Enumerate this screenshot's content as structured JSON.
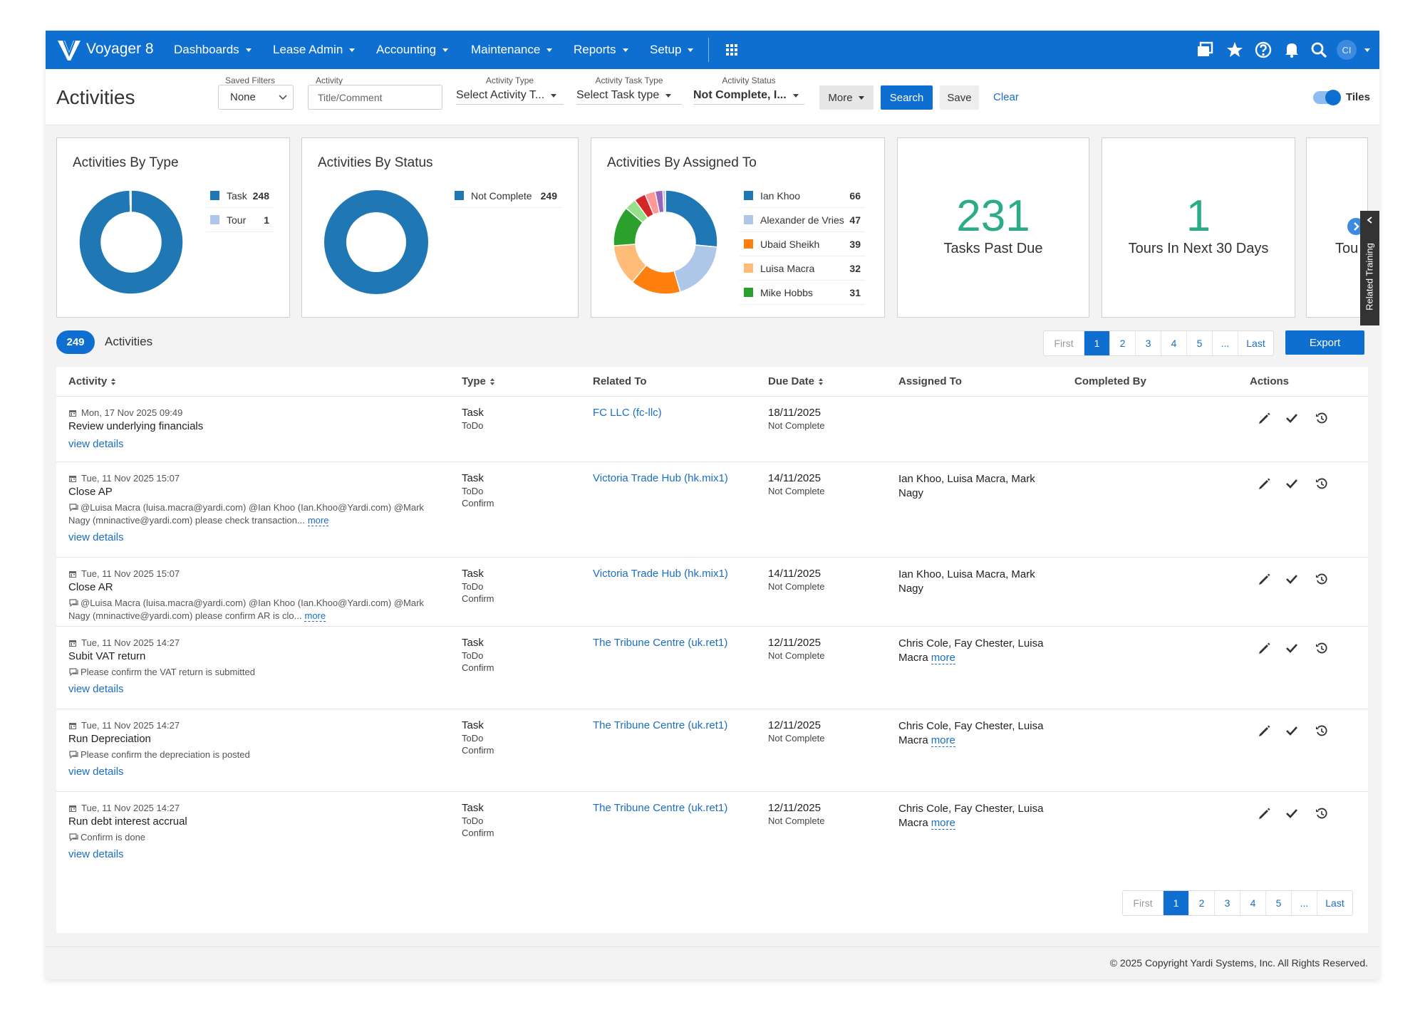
{
  "nav": {
    "brand": "Voyager 8",
    "menus": [
      "Dashboards",
      "Lease Admin",
      "Accounting",
      "Maintenance",
      "Reports",
      "Setup"
    ],
    "user": "CI"
  },
  "toolbar": {
    "title": "Activities",
    "filters": [
      {
        "label": "Saved Filters",
        "value": "None"
      },
      {
        "label": "Activity",
        "placeholder": "Title/Comment"
      },
      {
        "label": "Activity Type",
        "value": "Select Activity T..."
      },
      {
        "label": "Activity Task Type",
        "value": "Select Task type"
      },
      {
        "label": "Activity Status",
        "value": "Not Complete, I..."
      }
    ],
    "more": "More",
    "search": "Search",
    "save": "Save",
    "clear": "Clear",
    "toggle": {
      "label": "Tiles",
      "on": true
    }
  },
  "chart_data": [
    {
      "type": "pie",
      "title": "Activities By Type",
      "categories": [
        "Task",
        "Tour"
      ],
      "values": [
        248,
        1
      ],
      "colors": [
        "#1f77b4",
        "#aec7e8"
      ]
    },
    {
      "type": "pie",
      "title": "Activities By Status",
      "categories": [
        "Not Complete"
      ],
      "values": [
        249
      ],
      "colors": [
        "#1f77b4"
      ]
    },
    {
      "type": "pie",
      "title": "Activities By Assigned To",
      "categories": [
        "Ian Khoo",
        "Alexander de Vries",
        "Ubaid Sheikh",
        "Luisa Macra",
        "Mike Hobbs",
        null,
        null,
        null,
        null,
        null
      ],
      "values": [
        66,
        47,
        39,
        32,
        31,
        9,
        9,
        8,
        6,
        2
      ],
      "colors": [
        "#1f77b4",
        "#aec7e8",
        "#ff7f0e",
        "#ffbb78",
        "#2ca02c",
        "#98df8a",
        "#d62728",
        "#ff9896",
        "#9467bd",
        "#c5b0d5"
      ]
    }
  ],
  "kpis": [
    {
      "value": 231,
      "label": "Tasks Past Due"
    },
    {
      "value": 1,
      "label": "Tours In Next 30 Days"
    },
    {
      "label": "Tou"
    }
  ],
  "related_training": "Related Training",
  "list": {
    "count": 249,
    "title": "Activities",
    "export": "Export",
    "pages": [
      "First",
      "1",
      "2",
      "3",
      "4",
      "5",
      "...",
      "Last"
    ],
    "current": 1
  },
  "table": {
    "headers": [
      {
        "text": "Activity",
        "sort": true
      },
      {
        "text": "Type",
        "sort": true
      },
      {
        "text": "Related To",
        "sort": false
      },
      {
        "text": "Due Date",
        "sort": true
      },
      {
        "text": "Assigned To",
        "sort": false
      },
      {
        "text": "Completed By",
        "sort": false
      },
      {
        "text": "Actions",
        "sort": false
      }
    ],
    "rows": [
      {
        "date": "Mon, 17 Nov 2025 09:49",
        "title": "Review underlying financials",
        "details": "view details",
        "type": "Task",
        "subtypes": [
          "ToDo"
        ],
        "related": "FC LLC (fc-llc)",
        "due": "18/11/2025",
        "status": "Not Complete"
      },
      {
        "date": "Tue, 11 Nov 2025 15:07",
        "title": "Close AP",
        "comment": "@Luisa Macra (luisa.macra@yardi.com) @Ian Khoo (Ian.Khoo@Yardi.com) @Mark Nagy (mninactive@yardi.com) please check transaction...",
        "comment_more": "more",
        "details": "view details",
        "type": "Task",
        "subtypes": [
          "ToDo",
          "Confirm"
        ],
        "related": "Victoria Trade Hub (hk.mix1)",
        "due": "14/11/2025",
        "status": "Not Complete",
        "assigned": "Ian Khoo, Luisa Macra, Mark Nagy"
      },
      {
        "date": "Tue, 11 Nov 2025 15:07",
        "title": "Close AR",
        "comment": "@Luisa Macra (luisa.macra@yardi.com) @Ian Khoo (Ian.Khoo@Yardi.com) @Mark Nagy (mninactive@yardi.com) please confirm AR is clo...",
        "comment_more": "more",
        "type": "Task",
        "subtypes": [
          "ToDo",
          "Confirm"
        ],
        "related": "Victoria Trade Hub (hk.mix1)",
        "due": "14/11/2025",
        "status": "Not Complete",
        "assigned": "Ian Khoo, Luisa Macra, Mark Nagy"
      },
      {
        "date": "Tue, 11 Nov 2025 14:27",
        "title": "Subit VAT return",
        "comment": "Please confirm the VAT return is submitted",
        "details": "view details",
        "type": "Task",
        "subtypes": [
          "ToDo",
          "Confirm"
        ],
        "related": "The Tribune Centre (uk.ret1)",
        "due": "12/11/2025",
        "status": "Not Complete",
        "assigned": "Chris Cole, Fay Chester, Luisa Macra",
        "assigned_more": "more"
      },
      {
        "date": "Tue, 11 Nov 2025 14:27",
        "title": "Run Depreciation",
        "comment": "Please confirm the depreciation is posted",
        "details": "view details",
        "type": "Task",
        "subtypes": [
          "ToDo",
          "Confirm"
        ],
        "related": "The Tribune Centre (uk.ret1)",
        "due": "12/11/2025",
        "status": "Not Complete",
        "assigned": "Chris Cole, Fay Chester, Luisa Macra",
        "assigned_more": "more"
      },
      {
        "date": "Tue, 11 Nov 2025 14:27",
        "title": "Run debt interest accrual",
        "comment": "Confirm is done",
        "details": "view details",
        "type": "Task",
        "subtypes": [
          "ToDo",
          "Confirm"
        ],
        "related": "The Tribune Centre (uk.ret1)",
        "due": "12/11/2025",
        "status": "Not Complete",
        "assigned": "Chris Cole, Fay Chester, Luisa Macra",
        "assigned_more": "more"
      }
    ]
  },
  "footer": "© 2025 Copyright Yardi Systems, Inc. All Rights Reserved."
}
